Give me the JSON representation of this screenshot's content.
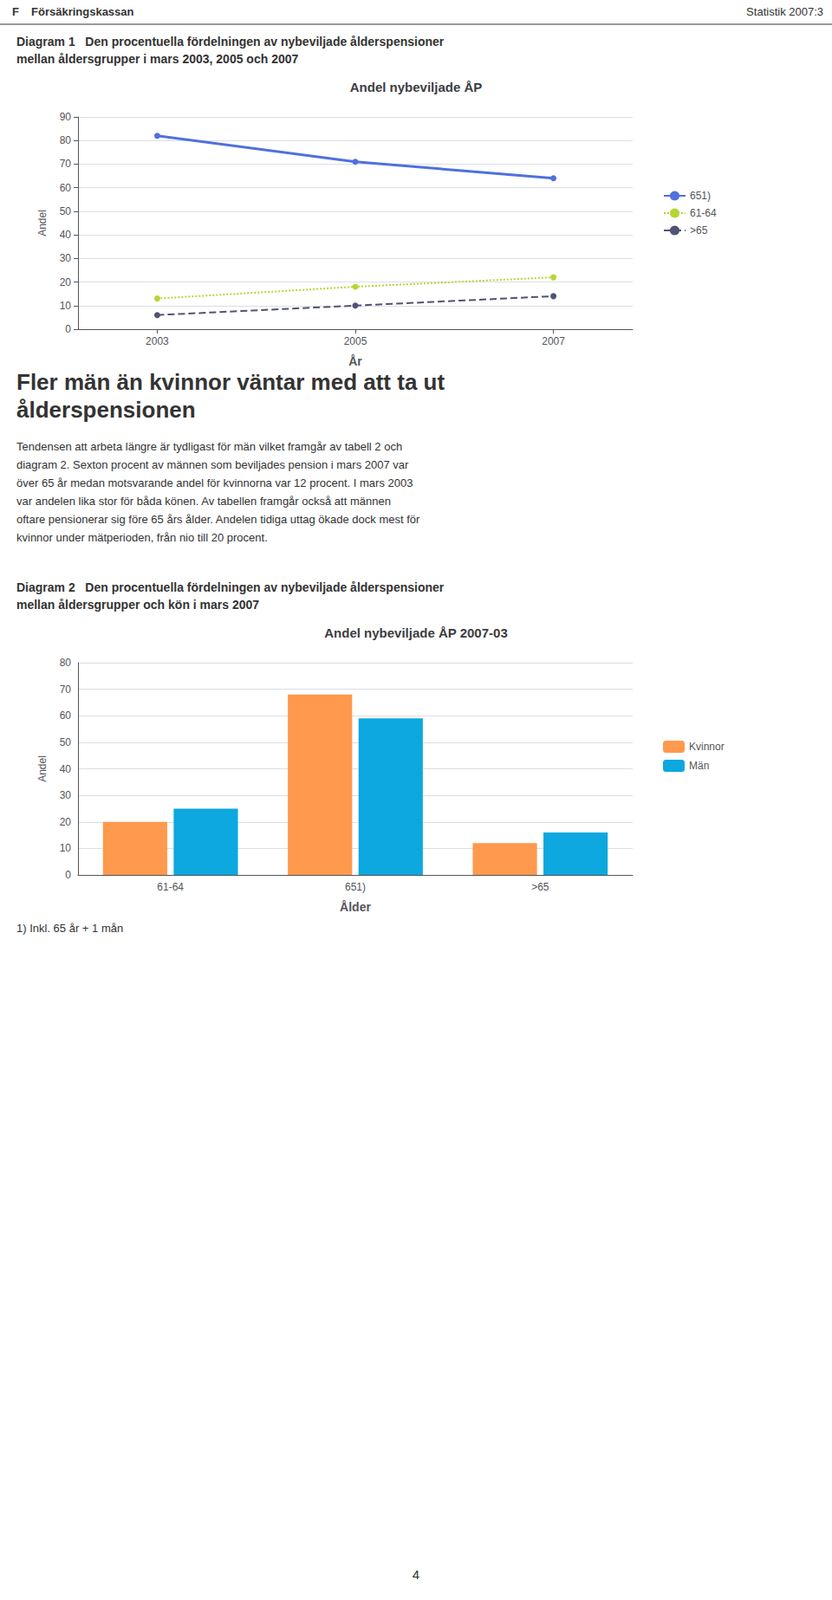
{
  "chart_data": [
    {
      "type": "line",
      "title": "Andel nybeviljade ÅP",
      "subtitle": "Diagram 1   Den procentuella fördelningen av nybeviljade ålderspensioner\nmellan åldersgrupper i mars 2003, 2005 och 2007",
      "xlabel": "År",
      "ylabel": "Andel",
      "x": [
        2003,
        2005,
        2007
      ],
      "series": [
        {
          "name": "651)",
          "values": [
            82,
            71,
            64
          ],
          "line_style": "solid",
          "marker": "circle"
        },
        {
          "name": "61-64",
          "values": [
            13,
            18,
            22
          ],
          "line_style": "dotted",
          "marker": "circle"
        },
        {
          "name": ">65",
          "values": [
            6,
            10,
            14
          ],
          "line_style": "dashed",
          "marker": "circle"
        }
      ],
      "xlim": [
        2002.2,
        2007.8
      ],
      "xticks": [
        2003,
        2005,
        2007
      ],
      "ylim": [
        0,
        90
      ],
      "yticks": [
        0,
        10,
        20,
        30,
        40,
        50,
        60,
        70,
        80,
        90
      ],
      "grid": true,
      "legend": "right",
      "annotations": [
        "F",
        "Försäkringskassan",
        "Statistik 2007:3",
        "Fler män än kvinnor väntar med att ta ut\nålderspensionen",
        "Tendensen att arbeta längre är tydligast för män vilket framgår av tabell 2 och\ndiagram 2. Sexton procent av männen som beviljades pension i mars 2007 var\növer 65 år medan motsvarande andel för kvinnorna var 12 procent. I mars 2003\nvar andelen lika stor för båda könen. Av tabellen framgår också att männen\noftare pensionerar sig före 65 års ålder. Andelen tidiga uttag ökade dock mest för\nkvinnor under mätperioden, från nio till 20 procent."
      ]
    },
    {
      "type": "bar",
      "title": "Andel nybeviljade ÅP 2007-03",
      "subtitle": "Diagram 2   Den procentuella fördelningen av nybeviljade ålderspensioner\nmellan åldersgrupper och kön i mars 2007",
      "xlabel": "Ålder",
      "ylabel": "Andel",
      "categories": [
        "61-64",
        "651)",
        ">65"
      ],
      "series": [
        {
          "name": "Kvinnor",
          "values": [
            20,
            68,
            12
          ]
        },
        {
          "name": "Män",
          "values": [
            25,
            59,
            16
          ]
        }
      ],
      "ylim": [
        0,
        80
      ],
      "yticks": [
        0,
        10,
        20,
        30,
        40,
        50,
        60,
        70,
        80
      ],
      "grid": true,
      "legend": "right",
      "annotations": [
        "1) Inkl. 65 år + 1 mån",
        "4"
      ]
    }
  ]
}
